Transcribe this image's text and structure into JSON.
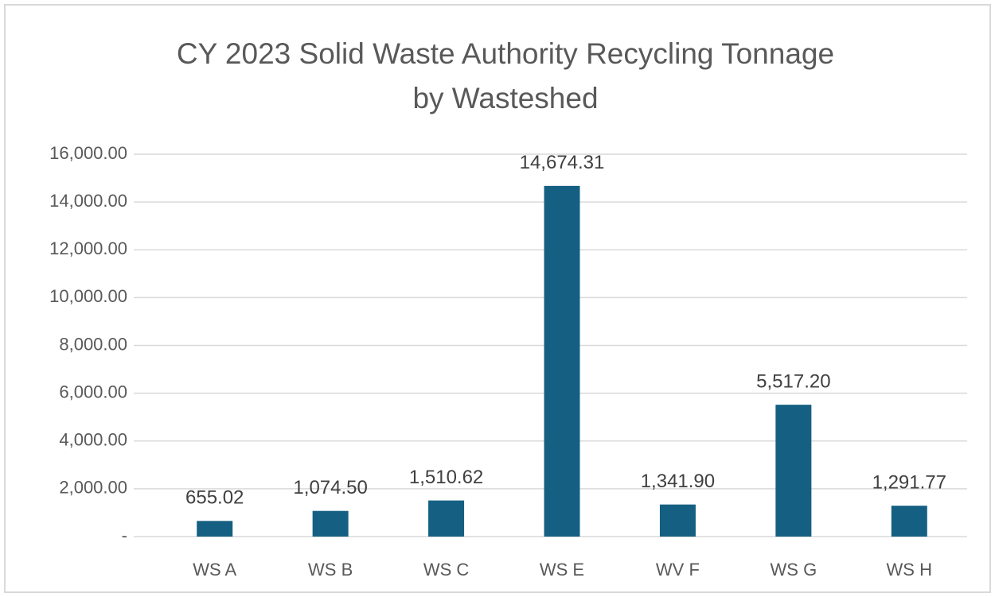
{
  "chart_data": {
    "type": "bar",
    "title": "CY 2023 Solid Waste Authority Recycling Tonnage",
    "subtitle": "by Wasteshed",
    "categories": [
      "WS A",
      "WS B",
      "WS C",
      "WS E",
      "WV F",
      "WS G",
      "WS H"
    ],
    "values": [
      655.02,
      1074.5,
      1510.62,
      14674.31,
      1341.9,
      5517.2,
      1291.77
    ],
    "value_labels": [
      "655.02",
      "1,074.50",
      "1,510.62",
      "14,674.31",
      "1,341.90",
      "5,517.20",
      "1,291.77"
    ],
    "color": "#156082",
    "ylim": [
      0,
      16000
    ],
    "yticks": [
      {
        "value": 0,
        "label": "-"
      },
      {
        "value": 2000,
        "label": "2,000.00"
      },
      {
        "value": 4000,
        "label": "4,000.00"
      },
      {
        "value": 6000,
        "label": "6,000.00"
      },
      {
        "value": 8000,
        "label": "8,000.00"
      },
      {
        "value": 10000,
        "label": "10,000.00"
      },
      {
        "value": 12000,
        "label": "12,000.00"
      },
      {
        "value": 14000,
        "label": "14,000.00"
      },
      {
        "value": 16000,
        "label": "16,000.00"
      }
    ],
    "grid": true
  }
}
